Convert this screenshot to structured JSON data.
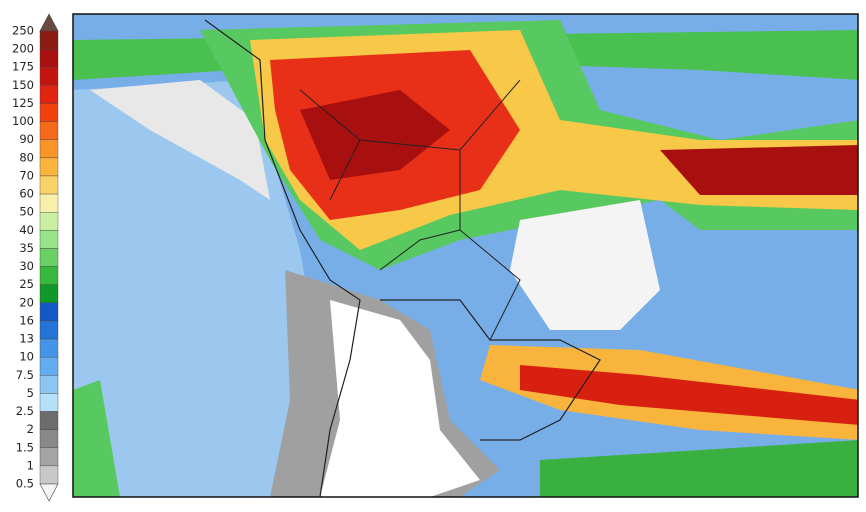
{
  "colorbar": {
    "levels": [
      250,
      200,
      175,
      150,
      125,
      100,
      90,
      80,
      70,
      60,
      50,
      40,
      35,
      30,
      25,
      20,
      16,
      13,
      10,
      7.5,
      5,
      2.5,
      2,
      1.5,
      1,
      0.5
    ],
    "colors": [
      "#8a1c14",
      "#a81010",
      "#c41410",
      "#e02410",
      "#f0400c",
      "#f46a18",
      "#f89428",
      "#f8b43c",
      "#f8d468",
      "#f8f0a8",
      "#c8f0a0",
      "#98e488",
      "#68d064",
      "#38b83c",
      "#109828",
      "#1458c4",
      "#2474d8",
      "#4494e8",
      "#64acf0",
      "#8cc4f4",
      "#b4e0f8",
      "#6c6c6c",
      "#888888",
      "#a4a4a4",
      "#c8c8c8"
    ],
    "top_color": "#6a4a40",
    "bottom_color": "#f4f4f4"
  }
}
